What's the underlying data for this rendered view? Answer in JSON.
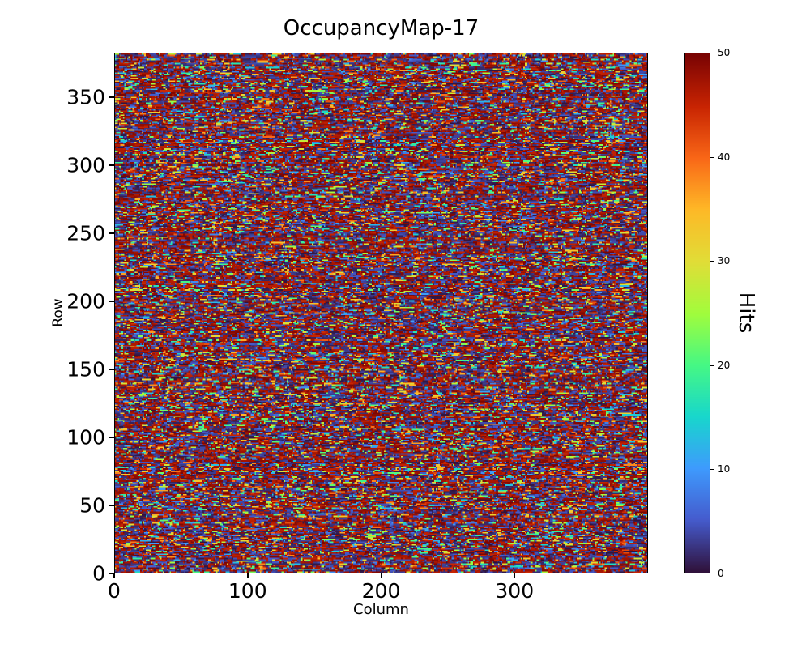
{
  "chart_data": {
    "type": "heatmap",
    "title": "OccupancyMap-17",
    "xlabel": "Column",
    "ylabel": "Row",
    "x_range": [
      0,
      400
    ],
    "y_range": [
      0,
      383
    ],
    "xticks": [
      0,
      100,
      200,
      300
    ],
    "yticks": [
      0,
      50,
      100,
      150,
      200,
      250,
      300,
      350
    ],
    "grid_size": {
      "columns": 400,
      "rows": 383
    },
    "colormap": "turbo",
    "colorbar": {
      "label": "Hits",
      "vmin": 0,
      "vmax": 50,
      "ticks": [
        0,
        10,
        20,
        30,
        40,
        50
      ]
    },
    "legend": "none",
    "grid": "off",
    "data_description": "Dense per-cell hit-count map (~400x383 cells). Values span 0-50; most cells sit near the extremes (near-0 dark navy and near-50 dark red), with sparse scattered mid-range hits appearing as short horizontal blue/cyan/green/yellow/orange dashes.",
    "generation": {
      "seed": 17,
      "mid_fraction": 0.22,
      "low_high_split": 0.5,
      "run_persistence": 0.5
    }
  }
}
